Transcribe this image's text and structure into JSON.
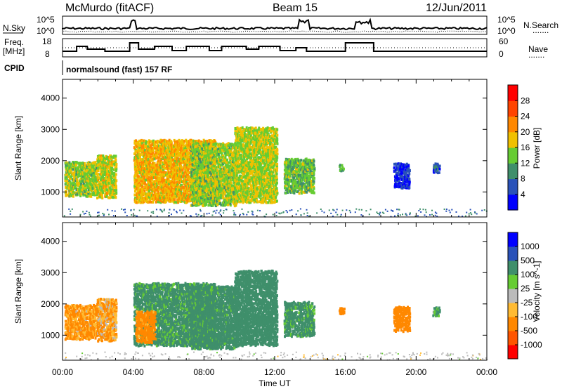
{
  "header": {
    "station": "McMurdo (fitACF)",
    "beam": "Beam 15",
    "date": "12/Jun/2011"
  },
  "summary": {
    "nsky_label": "N.Sky",
    "nsearch_label": "N.Search",
    "freq_label_1": "Freq.",
    "freq_label_2": "[MHz]",
    "nave_label": "Nave",
    "cpid_label": "CPID",
    "noise_ticks_left": [
      "10^5",
      "10^0"
    ],
    "noise_ticks_right": [
      "10^5",
      "10^0"
    ],
    "freq_ticks": [
      "18",
      "8"
    ],
    "nave_ticks": [
      "60",
      "0"
    ],
    "cpid_text": "normalsound (fast) 157 RF",
    "legend_dots": "......."
  },
  "colors": {
    "power": [
      "#0000ff",
      "#2a52b9",
      "#3f8f6b",
      "#66cc33",
      "#f0c000",
      "#ff8800",
      "#ff4400",
      "#ff0000"
    ],
    "velocity": [
      "#ff0000",
      "#ff5500",
      "#ff8800",
      "#ffbb33",
      "#bbbbbb",
      "#66cc33",
      "#3f8f6b",
      "#2a52b9",
      "#0000ff"
    ]
  },
  "chart_data": [
    {
      "type": "heatmap",
      "title": "",
      "xlabel": "Time UT",
      "ylabel": "Slant Range [km]",
      "x_range": [
        "00:00",
        "24:00"
      ],
      "ylim": [
        200,
        4600
      ],
      "yticks": [
        1000,
        2000,
        3000,
        4000
      ],
      "xticks": [
        "00:00",
        "04:00",
        "08:00",
        "12:00",
        "16:00",
        "20:00",
        "00:00"
      ],
      "colorbar_label": "Power [dB]",
      "colorbar_ticks": [
        "4",
        "8",
        "12",
        "16",
        "20",
        "24",
        "28"
      ],
      "patches": [
        {
          "t": [
            0.1,
            1.9
          ],
          "r": [
            900,
            2000
          ],
          "level": 17
        },
        {
          "t": [
            1.9,
            3.0
          ],
          "r": [
            850,
            2200
          ],
          "level": 19
        },
        {
          "t": [
            4.0,
            8.6
          ],
          "r": [
            700,
            2700
          ],
          "level": 21
        },
        {
          "t": [
            7.2,
            9.8
          ],
          "r": [
            600,
            2600
          ],
          "level": 17
        },
        {
          "t": [
            9.7,
            12.1
          ],
          "r": [
            700,
            3100
          ],
          "level": 18
        },
        {
          "t": [
            12.5,
            14.2
          ],
          "r": [
            1000,
            2100
          ],
          "level": 15
        },
        {
          "t": [
            15.6,
            15.9
          ],
          "r": [
            1700,
            1900
          ],
          "level": 13
        },
        {
          "t": [
            18.7,
            19.6
          ],
          "r": [
            1150,
            1950
          ],
          "level": 6
        },
        {
          "t": [
            20.9,
            21.3
          ],
          "r": [
            1650,
            1950
          ],
          "level": 7
        }
      ]
    },
    {
      "type": "heatmap",
      "title": "",
      "xlabel": "Time UT",
      "ylabel": "Slant Range [km]",
      "x_range": [
        "00:00",
        "24:00"
      ],
      "ylim": [
        200,
        4600
      ],
      "yticks": [
        1000,
        2000,
        3000,
        4000
      ],
      "xticks": [
        "00:00",
        "04:00",
        "08:00",
        "12:00",
        "16:00",
        "20:00",
        "00:00"
      ],
      "colorbar_label": "Velocity [m s^-1]",
      "colorbar_ticks": [
        "-1000",
        "-500",
        "-100",
        "-25",
        "25",
        "100",
        "500",
        "1000"
      ],
      "patches": [
        {
          "t": [
            0.1,
            1.9
          ],
          "r": [
            900,
            2000
          ],
          "level": -140
        },
        {
          "t": [
            1.9,
            3.0
          ],
          "r": [
            850,
            2200
          ],
          "level": -110
        },
        {
          "t": [
            4.0,
            8.6
          ],
          "r": [
            700,
            2700
          ],
          "level": 180
        },
        {
          "t": [
            4.1,
            5.2
          ],
          "r": [
            800,
            1800
          ],
          "level": -200
        },
        {
          "t": [
            7.2,
            9.8
          ],
          "r": [
            600,
            2600
          ],
          "level": 200
        },
        {
          "t": [
            9.7,
            12.1
          ],
          "r": [
            700,
            3100
          ],
          "level": 220
        },
        {
          "t": [
            12.5,
            14.2
          ],
          "r": [
            1000,
            2100
          ],
          "level": 180
        },
        {
          "t": [
            15.6,
            15.9
          ],
          "r": [
            1700,
            1900
          ],
          "level": -250
        },
        {
          "t": [
            18.7,
            19.6
          ],
          "r": [
            1150,
            1950
          ],
          "level": -300
        },
        {
          "t": [
            20.9,
            21.3
          ],
          "r": [
            1650,
            1950
          ],
          "level": 120
        }
      ]
    }
  ]
}
